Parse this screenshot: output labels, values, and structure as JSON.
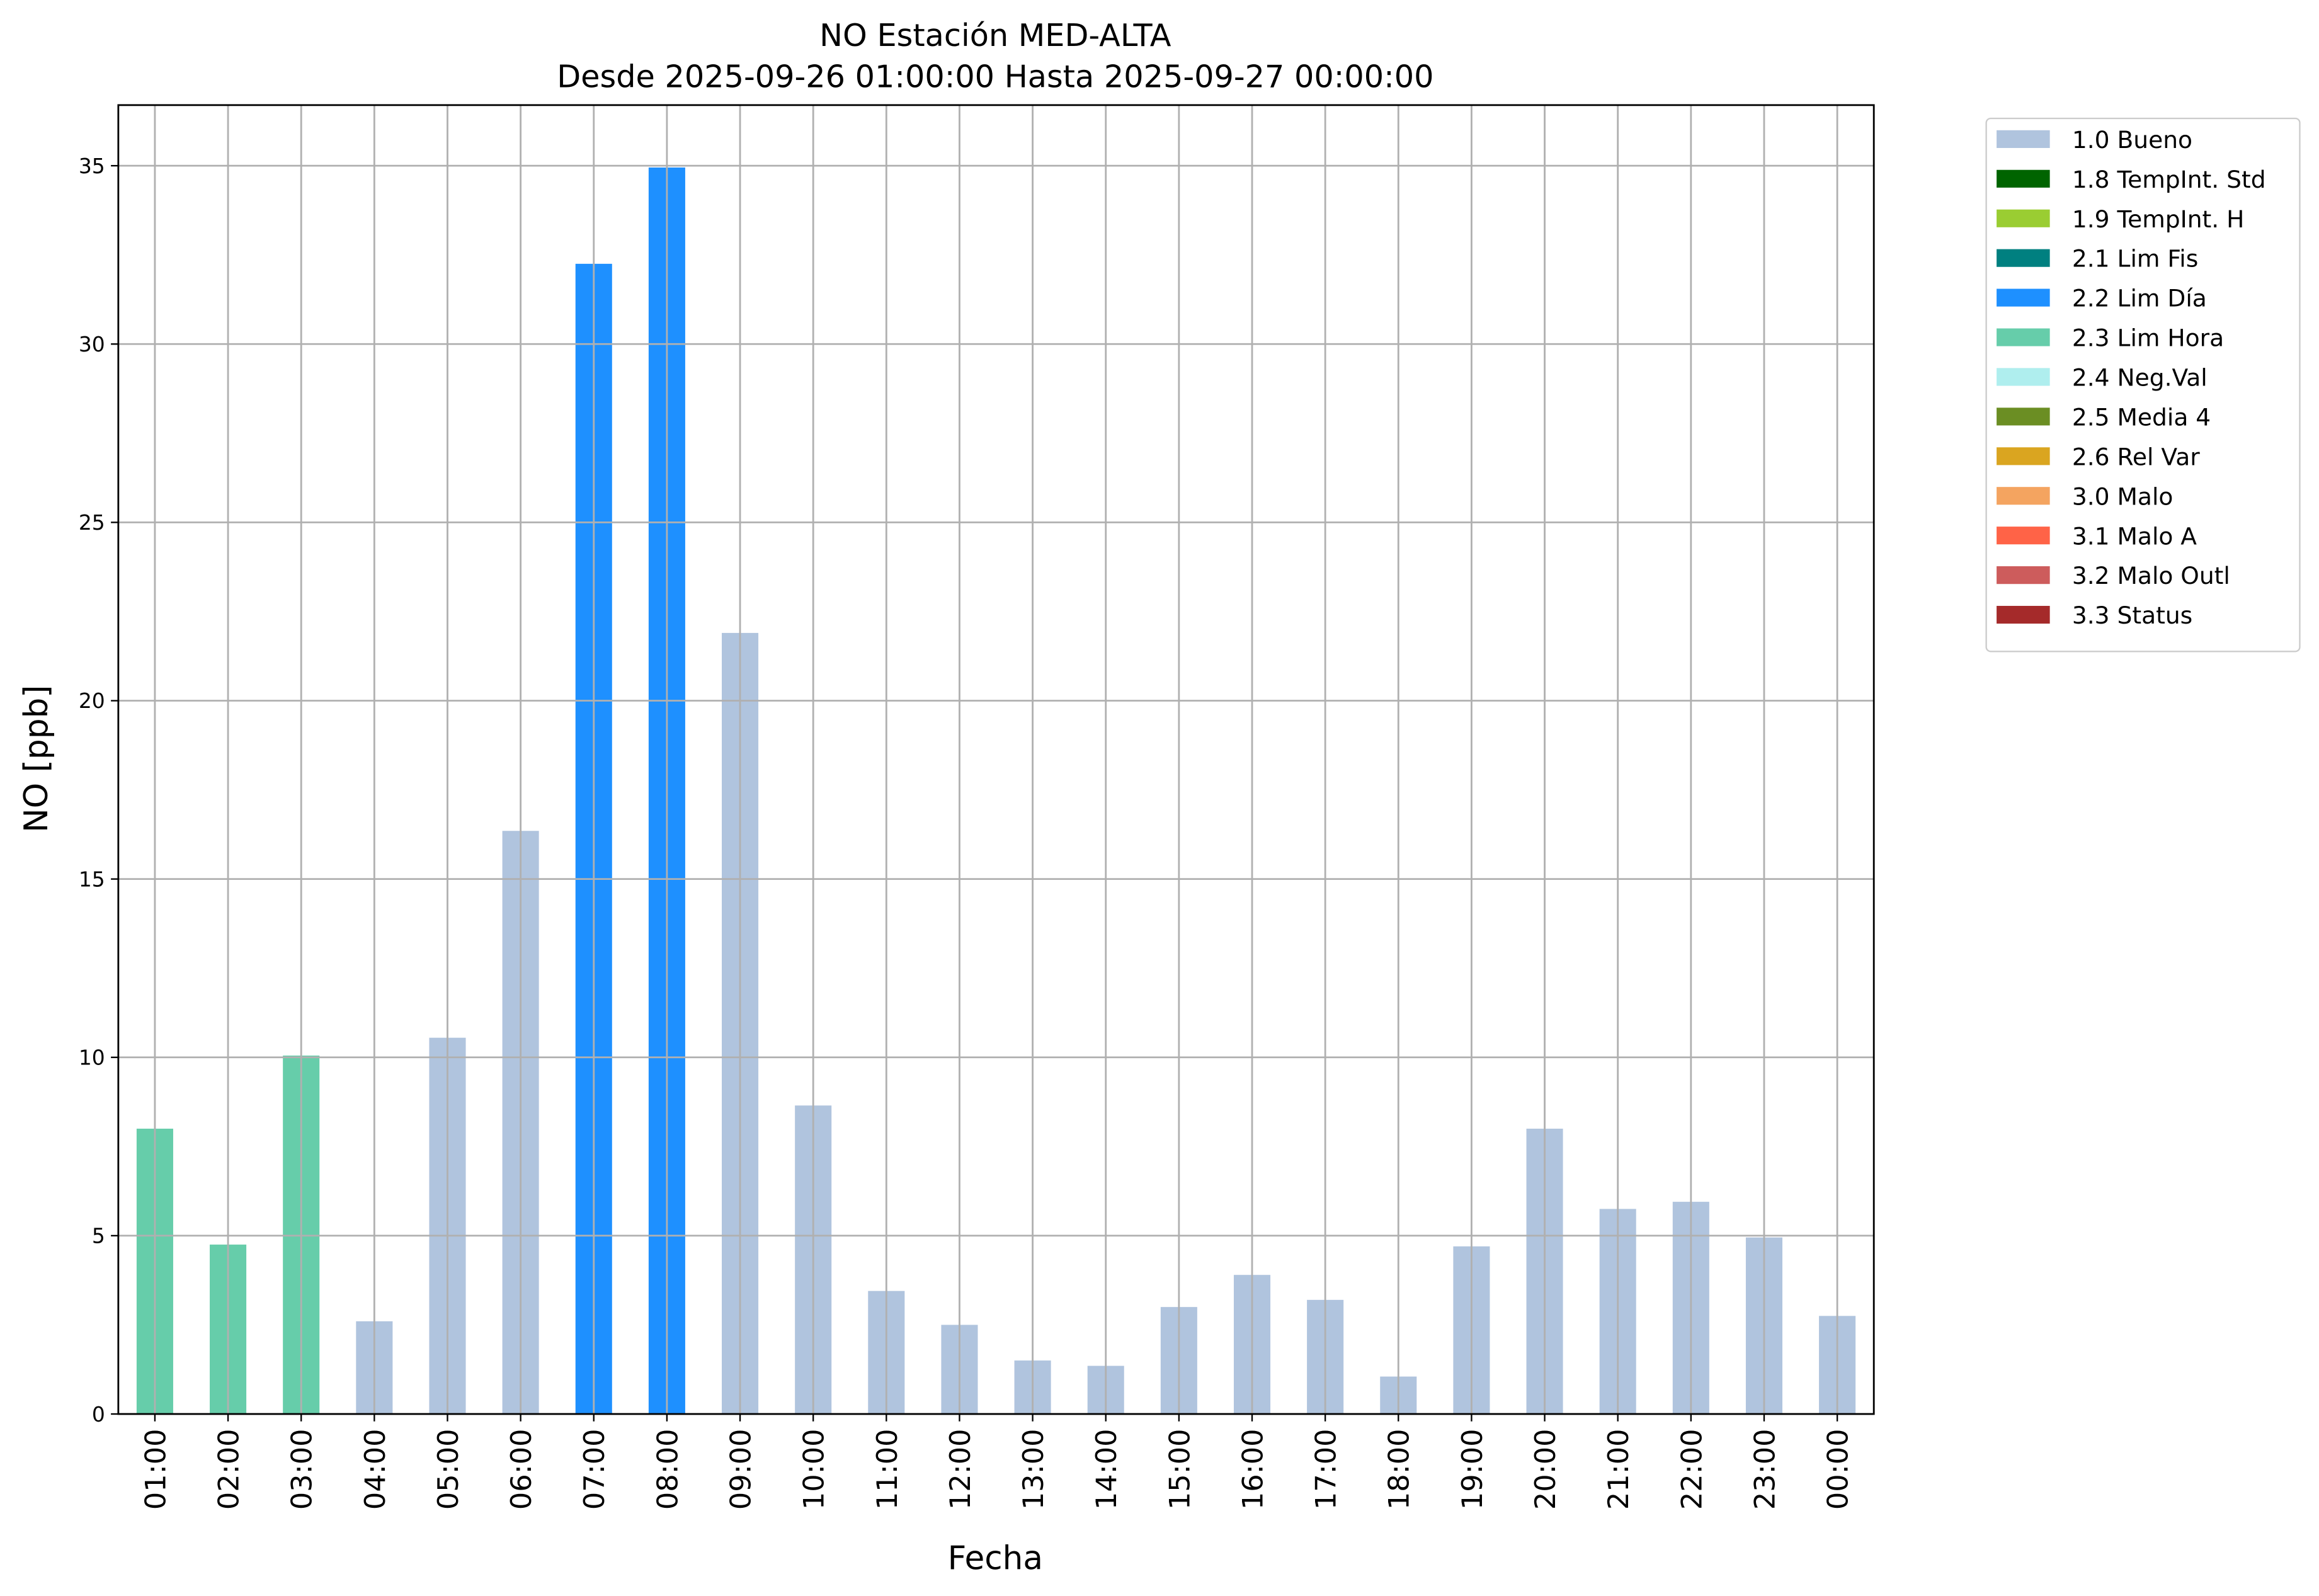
{
  "chart_data": {
    "type": "bar",
    "stacked": true,
    "title": "NO Estación MED-ALTA",
    "subtitle": "Desde 2025-09-26 01:00:00 Hasta 2025-09-27 00:00:00",
    "x_label": "Fecha",
    "y_label": "NO [ppb]",
    "categories": [
      "01:00",
      "02:00",
      "03:00",
      "04:00",
      "05:00",
      "06:00",
      "07:00",
      "08:00",
      "09:00",
      "10:00",
      "11:00",
      "12:00",
      "13:00",
      "14:00",
      "15:00",
      "16:00",
      "17:00",
      "18:00",
      "19:00",
      "20:00",
      "21:00",
      "22:00",
      "23:00",
      "00:00"
    ],
    "series": [
      {
        "name": "1.0 Bueno",
        "color": "#b0c4de",
        "values": [
          null,
          null,
          null,
          2.6,
          10.55,
          16.35,
          null,
          null,
          21.9,
          8.65,
          3.45,
          2.5,
          1.5,
          1.35,
          3.0,
          3.9,
          3.2,
          1.05,
          4.7,
          8.0,
          5.75,
          5.95,
          4.95,
          2.75
        ]
      },
      {
        "name": "1.8 TempInt. Std",
        "color": "#006400",
        "values": [
          null,
          null,
          null,
          null,
          null,
          null,
          null,
          null,
          null,
          null,
          null,
          null,
          null,
          null,
          null,
          null,
          null,
          null,
          null,
          null,
          null,
          null,
          null,
          null
        ]
      },
      {
        "name": "1.9 TempInt. H",
        "color": "#9acd32",
        "values": [
          null,
          null,
          null,
          null,
          null,
          null,
          null,
          null,
          null,
          null,
          null,
          null,
          null,
          null,
          null,
          null,
          null,
          null,
          null,
          null,
          null,
          null,
          null,
          null
        ]
      },
      {
        "name": "2.1 Lim Fis",
        "color": "#008080",
        "values": [
          null,
          null,
          null,
          null,
          null,
          null,
          null,
          null,
          null,
          null,
          null,
          null,
          null,
          null,
          null,
          null,
          null,
          null,
          null,
          null,
          null,
          null,
          null,
          null
        ]
      },
      {
        "name": "2.2 Lim Día",
        "color": "#1e90ff",
        "values": [
          null,
          null,
          null,
          null,
          null,
          null,
          32.25,
          34.95,
          null,
          null,
          null,
          null,
          null,
          null,
          null,
          null,
          null,
          null,
          null,
          null,
          null,
          null,
          null,
          null
        ]
      },
      {
        "name": "2.3 Lim Hora",
        "color": "#66cdaa",
        "values": [
          8.0,
          4.75,
          10.05,
          null,
          null,
          null,
          null,
          null,
          null,
          null,
          null,
          null,
          null,
          null,
          null,
          null,
          null,
          null,
          null,
          null,
          null,
          null,
          null,
          null
        ]
      },
      {
        "name": "2.4 Neg.Val",
        "color": "#afeeee",
        "values": [
          null,
          null,
          null,
          null,
          null,
          null,
          null,
          null,
          null,
          null,
          null,
          null,
          null,
          null,
          null,
          null,
          null,
          null,
          null,
          null,
          null,
          null,
          null,
          null
        ]
      },
      {
        "name": "2.5 Media 4",
        "color": "#6b8e23",
        "values": [
          null,
          null,
          null,
          null,
          null,
          null,
          null,
          null,
          null,
          null,
          null,
          null,
          null,
          null,
          null,
          null,
          null,
          null,
          null,
          null,
          null,
          null,
          null,
          null
        ]
      },
      {
        "name": "2.6 Rel Var",
        "color": "#daa520",
        "values": [
          null,
          null,
          null,
          null,
          null,
          null,
          null,
          null,
          null,
          null,
          null,
          null,
          null,
          null,
          null,
          null,
          null,
          null,
          null,
          null,
          null,
          null,
          null,
          null
        ]
      },
      {
        "name": "3.0 Malo",
        "color": "#f4a460",
        "values": [
          null,
          null,
          null,
          null,
          null,
          null,
          null,
          null,
          null,
          null,
          null,
          null,
          null,
          null,
          null,
          null,
          null,
          null,
          null,
          null,
          null,
          null,
          null,
          null
        ]
      },
      {
        "name": "3.1 Malo A",
        "color": "#ff6347",
        "values": [
          null,
          null,
          null,
          null,
          null,
          null,
          null,
          null,
          null,
          null,
          null,
          null,
          null,
          null,
          null,
          null,
          null,
          null,
          null,
          null,
          null,
          null,
          null,
          null
        ]
      },
      {
        "name": "3.2 Malo Outl",
        "color": "#cd5c5c",
        "values": [
          null,
          null,
          null,
          null,
          null,
          null,
          null,
          null,
          null,
          null,
          null,
          null,
          null,
          null,
          null,
          null,
          null,
          null,
          null,
          null,
          null,
          null,
          null,
          null
        ]
      },
      {
        "name": "3.3 Status",
        "color": "#a52a2a",
        "values": [
          null,
          null,
          null,
          null,
          null,
          null,
          null,
          null,
          null,
          null,
          null,
          null,
          null,
          null,
          null,
          null,
          null,
          null,
          null,
          null,
          null,
          null,
          null,
          null
        ]
      }
    ],
    "ylim": [
      0,
      36.7
    ],
    "yticks": [
      0,
      5,
      10,
      15,
      20,
      25,
      30,
      35
    ],
    "grid": true,
    "legend": "outside-upper-right"
  }
}
